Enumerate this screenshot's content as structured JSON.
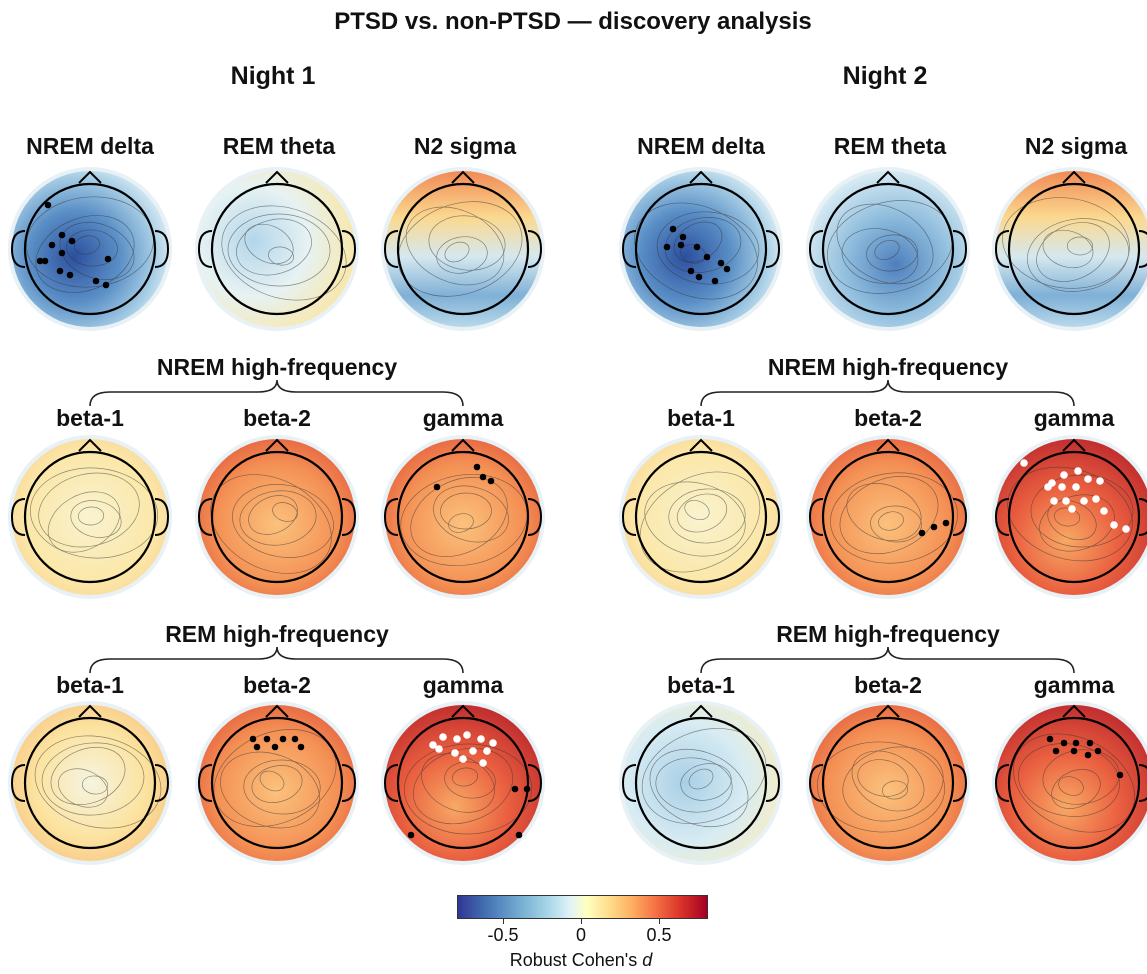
{
  "title": "PTSD vs. non-PTSD — discovery analysis",
  "nights": [
    "Night 1",
    "Night 2"
  ],
  "row1_labels": [
    "NREM delta",
    "REM theta",
    "N2 sigma"
  ],
  "group_labels": [
    "NREM high-frequency",
    "REM high-frequency"
  ],
  "band_labels": [
    "beta-1",
    "beta-2",
    "gamma"
  ],
  "colorbar": {
    "ticks": [
      "-0.5",
      "0",
      "0.5"
    ],
    "label_prefix": "Robust Cohen's ",
    "label_symbol": "d"
  },
  "colors": {
    "neg_strong": "#2c5fa8",
    "neg": "#7fb2d8",
    "neutral": "#f4f4d8",
    "pos": "#f4a160",
    "pos_strong": "#c0282c"
  },
  "maps": [
    {
      "id": "n1-nrem-delta",
      "night": 1,
      "row": 0,
      "col": 0,
      "tone": "neg_strong"
    },
    {
      "id": "n1-rem-theta",
      "night": 1,
      "row": 0,
      "col": 1,
      "tone": "neutral_cool"
    },
    {
      "id": "n1-n2-sigma",
      "night": 1,
      "row": 0,
      "col": 2,
      "tone": "mixed"
    },
    {
      "id": "n1-nrem-beta1",
      "night": 1,
      "row": 1,
      "col": 0,
      "tone": "neutral"
    },
    {
      "id": "n1-nrem-beta2",
      "night": 1,
      "row": 1,
      "col": 1,
      "tone": "pos"
    },
    {
      "id": "n1-nrem-gamma",
      "night": 1,
      "row": 1,
      "col": 2,
      "tone": "pos"
    },
    {
      "id": "n1-rem-beta1",
      "night": 1,
      "row": 2,
      "col": 0,
      "tone": "neutral_warm"
    },
    {
      "id": "n1-rem-beta2",
      "night": 1,
      "row": 2,
      "col": 1,
      "tone": "pos"
    },
    {
      "id": "n1-rem-gamma",
      "night": 1,
      "row": 2,
      "col": 2,
      "tone": "pos_strong"
    },
    {
      "id": "n2-nrem-delta",
      "night": 2,
      "row": 0,
      "col": 0,
      "tone": "neg_strong"
    },
    {
      "id": "n2-rem-theta",
      "night": 2,
      "row": 0,
      "col": 1,
      "tone": "neg"
    },
    {
      "id": "n2-n2-sigma",
      "night": 2,
      "row": 0,
      "col": 2,
      "tone": "mixed"
    },
    {
      "id": "n2-nrem-beta1",
      "night": 2,
      "row": 1,
      "col": 0,
      "tone": "neutral"
    },
    {
      "id": "n2-nrem-beta2",
      "night": 2,
      "row": 1,
      "col": 1,
      "tone": "pos"
    },
    {
      "id": "n2-nrem-gamma",
      "night": 2,
      "row": 1,
      "col": 2,
      "tone": "pos_strong"
    },
    {
      "id": "n2-rem-beta1",
      "night": 2,
      "row": 2,
      "col": 0,
      "tone": "neg_light"
    },
    {
      "id": "n2-rem-beta2",
      "night": 2,
      "row": 2,
      "col": 1,
      "tone": "pos"
    },
    {
      "id": "n2-rem-gamma",
      "night": 2,
      "row": 2,
      "col": 2,
      "tone": "pos_strong"
    }
  ]
}
